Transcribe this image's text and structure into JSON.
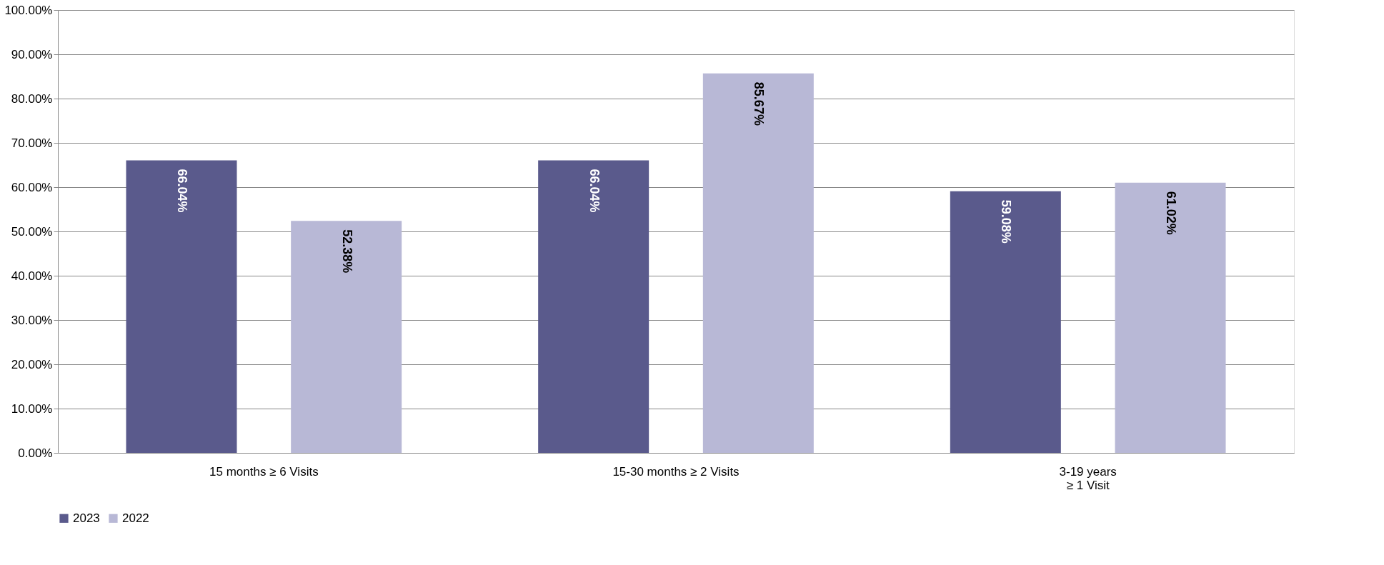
{
  "chart_data": {
    "type": "bar",
    "categories": [
      "15 months ≥ 6 Visits",
      "15-30 months ≥ 2 Visits",
      "3-19 years\n≥ 1 Visit"
    ],
    "series": [
      {
        "name": "2023",
        "color": "#5a5a8c",
        "values": [
          66.04,
          66.04,
          59.08
        ],
        "value_labels": [
          "66.04%",
          "66.04%",
          "59.08%"
        ]
      },
      {
        "name": "2022",
        "color": "#b8b8d6",
        "values": [
          52.38,
          85.67,
          61.02
        ],
        "value_labels": [
          "52.38%",
          "85.67%",
          "61.02%"
        ]
      }
    ],
    "ylim": [
      0,
      100
    ],
    "yticks": [
      {
        "value": 0,
        "label": "0.00%"
      },
      {
        "value": 10,
        "label": "10.00%"
      },
      {
        "value": 20,
        "label": "20.00%"
      },
      {
        "value": 30,
        "label": "30.00%"
      },
      {
        "value": 40,
        "label": "40.00%"
      },
      {
        "value": 50,
        "label": "50.00%"
      },
      {
        "value": 60,
        "label": "60.00%"
      },
      {
        "value": 70,
        "label": "70.00%"
      },
      {
        "value": 80,
        "label": "80.00%"
      },
      {
        "value": 90,
        "label": "90.00%"
      },
      {
        "value": 100,
        "label": "100.00%"
      }
    ],
    "grid": "y",
    "legend": "bottom"
  }
}
